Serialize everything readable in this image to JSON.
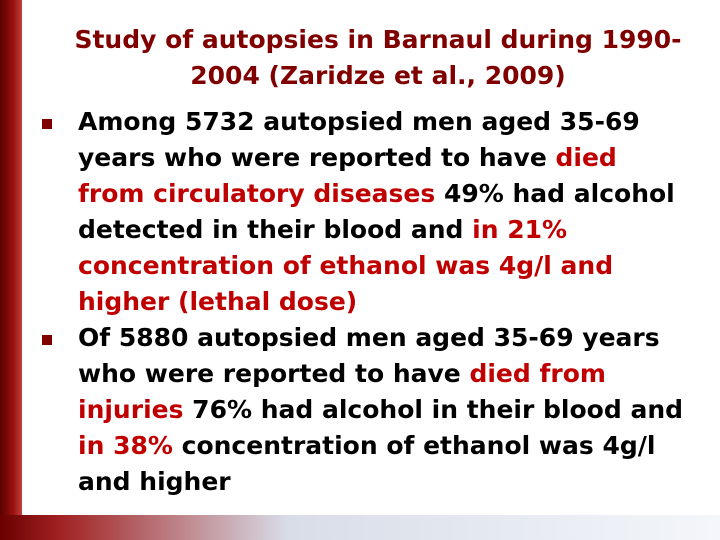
{
  "title": "Study of autopsies in Barnaul during 1990-2004 (Zaridze et al., 2009)",
  "bullets": [
    {
      "runs": [
        {
          "text": "Among 5732 autopsied men aged 35-69 years who were reported to have "
        },
        {
          "text": "died from circulatory diseases",
          "color": "#c00000"
        },
        {
          "text": " 49% had alcohol detected in their blood and "
        },
        {
          "text": "in 21% concentration of ethanol was 4g/l and higher (lethal dose)",
          "color": "#c00000"
        }
      ]
    },
    {
      "runs": [
        {
          "text": "Of 5880 autopsied men aged 35-69 years who were reported to have "
        },
        {
          "text": "died from injuries",
          "color": "#c00000"
        },
        {
          "text": " 76% had alcohol in their blood and "
        },
        {
          "text": "in 38%",
          "color": "#c00000"
        },
        {
          "text": " concentration of ethanol was 4g/l and higher"
        }
      ]
    }
  ]
}
